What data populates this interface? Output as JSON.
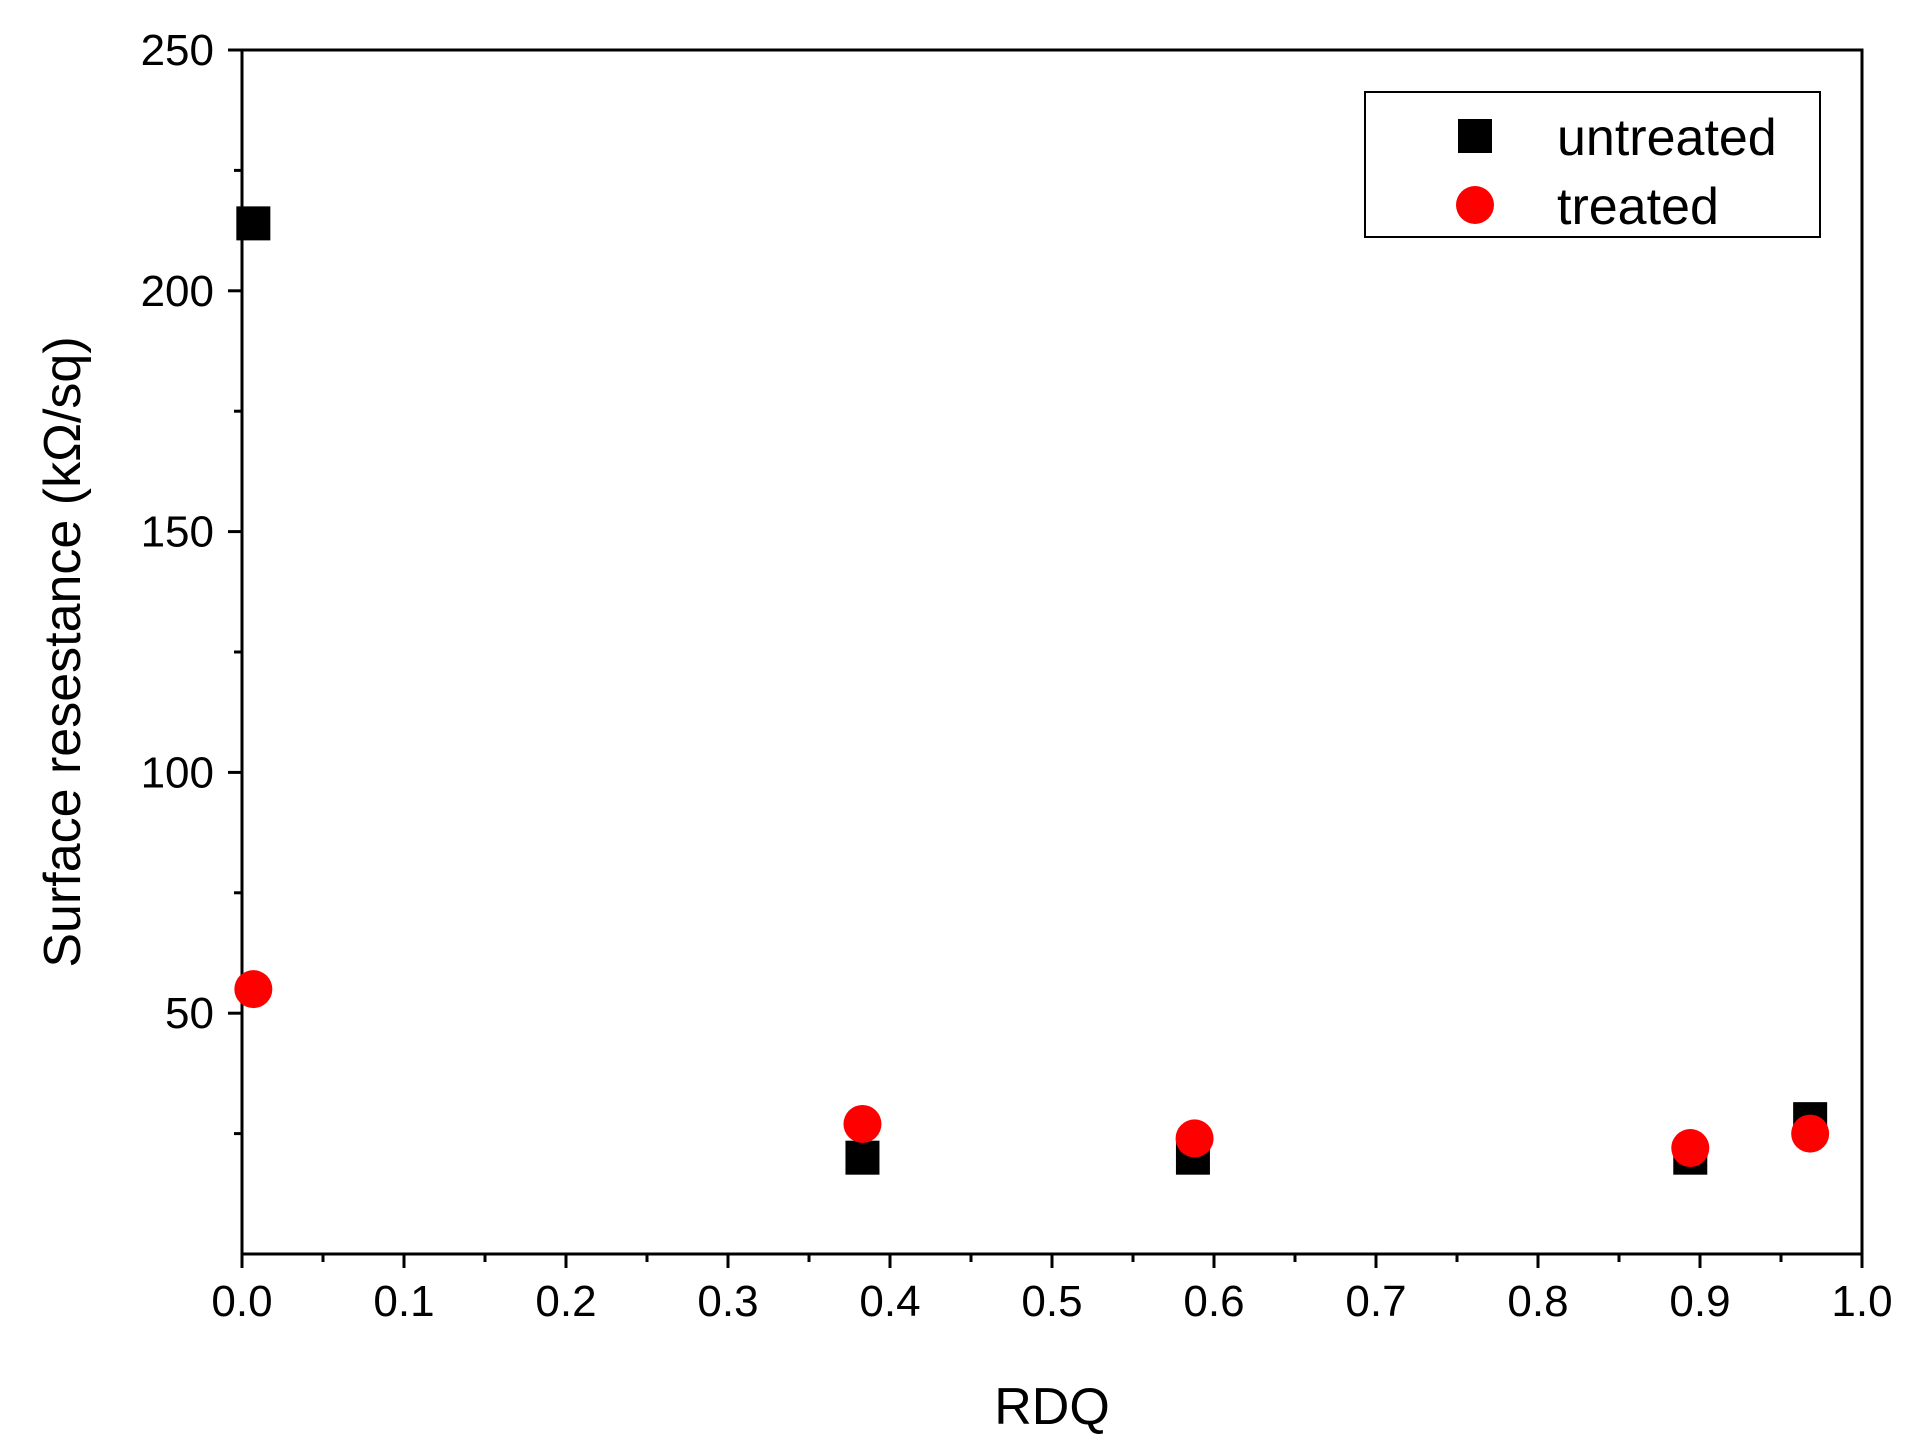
{
  "chart_data": {
    "type": "scatter",
    "title": "",
    "xlabel": "RDQ",
    "ylabel": "Surface resestance (kΩ/sq)",
    "xlim": [
      0.0,
      1.0
    ],
    "ylim": [
      0,
      250
    ],
    "x_ticks": [
      "0.0",
      "0.1",
      "0.2",
      "0.3",
      "0.4",
      "0.5",
      "0.6",
      "0.7",
      "0.8",
      "0.9",
      "1.0"
    ],
    "y_ticks": [
      "50",
      "100",
      "150",
      "200",
      "250"
    ],
    "grid": false,
    "legend_position": "top-right",
    "series": [
      {
        "name": "untreated",
        "marker": "square",
        "color": "#000000",
        "points": [
          {
            "x": 0.007,
            "y": 214
          },
          {
            "x": 0.383,
            "y": 20
          },
          {
            "x": 0.587,
            "y": 20
          },
          {
            "x": 0.894,
            "y": 20
          },
          {
            "x": 0.968,
            "y": 28
          }
        ]
      },
      {
        "name": "treated",
        "marker": "circle",
        "color": "#ff0000",
        "points": [
          {
            "x": 0.007,
            "y": 55
          },
          {
            "x": 0.383,
            "y": 27
          },
          {
            "x": 0.588,
            "y": 24
          },
          {
            "x": 0.894,
            "y": 22
          },
          {
            "x": 0.968,
            "y": 25
          }
        ]
      }
    ]
  }
}
